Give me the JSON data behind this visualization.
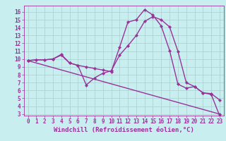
{
  "xlabel": "Windchill (Refroidissement éolien,°C)",
  "background_color": "#c8eef0",
  "line_color": "#993399",
  "grid_color": "#aacccc",
  "xlim": [
    -0.5,
    23.5
  ],
  "ylim": [
    2.8,
    16.8
  ],
  "xticks": [
    0,
    1,
    2,
    3,
    4,
    5,
    6,
    7,
    8,
    9,
    10,
    11,
    12,
    13,
    14,
    15,
    16,
    17,
    18,
    19,
    20,
    21,
    22,
    23
  ],
  "yticks": [
    3,
    4,
    5,
    6,
    7,
    8,
    9,
    10,
    11,
    12,
    13,
    14,
    15,
    16
  ],
  "curve1_x": [
    0,
    1,
    2,
    3,
    4,
    5,
    6,
    7,
    8,
    9,
    10,
    11,
    12,
    13,
    14,
    15,
    16,
    17,
    18,
    19,
    20,
    21,
    22,
    23
  ],
  "curve1_y": [
    9.8,
    9.9,
    9.9,
    10.0,
    10.6,
    9.5,
    9.2,
    9.0,
    8.8,
    8.6,
    8.4,
    11.5,
    14.7,
    15.0,
    16.3,
    15.6,
    14.2,
    11.1,
    6.8,
    6.3,
    6.5,
    5.7,
    5.6,
    4.8
  ],
  "curve2_x": [
    0,
    1,
    2,
    3,
    4,
    5,
    6,
    7,
    8,
    9,
    10,
    11,
    12,
    13,
    14,
    15,
    16,
    17,
    18,
    19,
    20,
    21,
    22,
    23
  ],
  "curve2_y": [
    9.8,
    9.9,
    9.9,
    10.0,
    10.5,
    9.5,
    9.2,
    6.7,
    7.6,
    8.2,
    8.5,
    10.5,
    11.7,
    13.0,
    14.8,
    15.4,
    15.0,
    14.1,
    11.0,
    7.0,
    6.5,
    5.7,
    5.5,
    2.8
  ],
  "curve3_x": [
    0,
    23
  ],
  "curve3_y": [
    9.8,
    3.0
  ],
  "marker": "D",
  "markersize": 2.2,
  "linewidth": 1.0,
  "tick_fontsize": 5.5,
  "label_fontsize": 6.5
}
